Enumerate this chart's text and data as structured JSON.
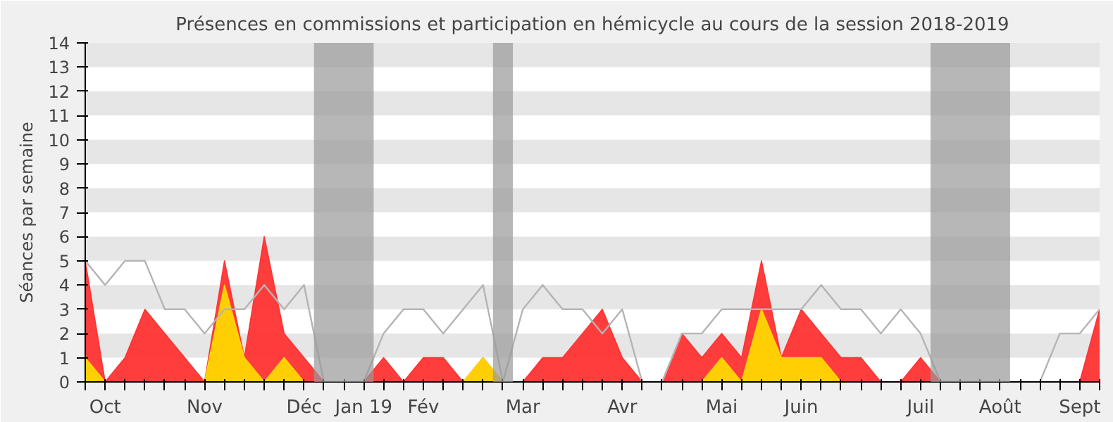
{
  "chart_data": {
    "type": "area",
    "title": "Présences en commissions et participation en hémicycle au cours de la session 2018-2019",
    "ylabel": "Séances par semaine",
    "categories": [
      null,
      "Oct",
      null,
      null,
      null,
      null,
      "Nov",
      null,
      null,
      null,
      null,
      "Déc",
      null,
      null,
      "Jan 19",
      null,
      null,
      "Fév",
      null,
      null,
      null,
      null,
      "Mar",
      null,
      null,
      null,
      null,
      "Avr",
      null,
      null,
      null,
      null,
      "Mai",
      null,
      null,
      null,
      "Juin",
      null,
      null,
      null,
      null,
      null,
      "Juil",
      null,
      null,
      null,
      "Août",
      null,
      null,
      null,
      "Sept",
      null
    ],
    "series": [
      {
        "color": "#ff3333",
        "values": [
          5,
          0,
          1,
          3,
          2,
          1,
          0,
          5,
          1,
          6,
          2,
          1,
          0,
          0,
          0,
          1,
          0,
          1,
          1,
          0,
          1,
          0,
          0,
          1,
          1,
          2,
          3,
          1,
          0,
          0,
          2,
          1,
          2,
          1,
          5,
          1,
          3,
          2,
          1,
          1,
          0,
          0,
          1,
          0,
          0,
          0,
          0,
          0,
          0,
          0,
          0,
          3
        ]
      },
      {
        "color": "#ffd700",
        "values": [
          1,
          0,
          0,
          0,
          0,
          0,
          0,
          4,
          1,
          0,
          1,
          0,
          0,
          0,
          0,
          0,
          0,
          0,
          0,
          0,
          1,
          0,
          0,
          0,
          0,
          0,
          0,
          0,
          0,
          0,
          0,
          0,
          1,
          0,
          3,
          1,
          1,
          1,
          0,
          0,
          0,
          0,
          0,
          0,
          0,
          0,
          0,
          0,
          0,
          0,
          0,
          0
        ]
      },
      {
        "type": "line",
        "color": "#b4b4b4",
        "values": [
          5,
          4,
          5,
          5,
          3,
          3,
          2,
          3,
          3,
          4,
          3,
          4,
          0,
          0,
          0,
          2,
          3,
          3,
          2,
          3,
          4,
          0,
          3,
          4,
          3,
          3,
          2,
          3,
          0,
          0,
          2,
          2,
          3,
          3,
          3,
          3,
          3,
          4,
          3,
          3,
          2,
          3,
          2,
          0,
          0,
          0,
          0,
          0,
          0,
          2,
          2,
          3
        ]
      }
    ],
    "ylim": [
      0,
      14
    ],
    "yticks": [
      0,
      1,
      2,
      3,
      4,
      5,
      6,
      7,
      8,
      9,
      10,
      11,
      12,
      13,
      14
    ],
    "grid": false
  }
}
